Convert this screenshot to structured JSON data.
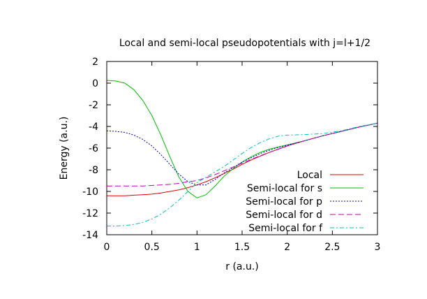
{
  "chart_data": {
    "type": "line",
    "title": "Local and semi-local pseudopotentials with j=l+1/2",
    "xlabel": "r (a.u.)",
    "ylabel": "Energy (a.u.)",
    "xlim": [
      0,
      3
    ],
    "ylim": [
      -14,
      2
    ],
    "xticks": [
      0,
      0.5,
      1,
      1.5,
      2,
      2.5,
      3
    ],
    "yticks": [
      2,
      0,
      -2,
      -4,
      -6,
      -8,
      -10,
      -12,
      -14
    ],
    "xtick_labels": [
      "0",
      "0.5",
      "1",
      "1.5",
      "2",
      "2.5",
      "3"
    ],
    "ytick_labels": [
      "2",
      "0",
      "-2",
      "-4",
      "-6",
      "-8",
      "-10",
      "-12",
      "-14"
    ],
    "grid": false,
    "legend_position": "bottom-right",
    "series": [
      {
        "name": "Local",
        "color": "#e00000",
        "dash": "solid",
        "x": [
          0,
          0.1,
          0.2,
          0.3,
          0.4,
          0.5,
          0.6,
          0.7,
          0.8,
          0.9,
          1.0,
          1.1,
          1.2,
          1.3,
          1.4,
          1.5,
          1.6,
          1.7,
          1.8,
          1.9,
          2.0,
          2.2,
          2.4,
          2.6,
          2.8,
          3.0
        ],
        "y": [
          -10.4,
          -10.4,
          -10.4,
          -10.35,
          -10.3,
          -10.25,
          -10.15,
          -10.0,
          -9.85,
          -9.65,
          -9.4,
          -9.1,
          -8.75,
          -8.35,
          -7.95,
          -7.5,
          -7.1,
          -6.75,
          -6.4,
          -6.1,
          -5.8,
          -5.3,
          -4.85,
          -4.45,
          -4.05,
          -3.7
        ]
      },
      {
        "name": "Semi-local for s",
        "color": "#00c000",
        "dash": "solid",
        "x": [
          0,
          0.1,
          0.2,
          0.3,
          0.4,
          0.5,
          0.6,
          0.7,
          0.8,
          0.9,
          1.0,
          1.1,
          1.2,
          1.3,
          1.4,
          1.5,
          1.6,
          1.7,
          1.8,
          1.9,
          2.0,
          2.2,
          2.4,
          2.6,
          2.8,
          3.0
        ],
        "y": [
          0.25,
          0.2,
          0.0,
          -0.6,
          -1.6,
          -3.0,
          -4.8,
          -6.8,
          -8.7,
          -10.0,
          -10.6,
          -10.3,
          -9.5,
          -8.6,
          -7.9,
          -7.3,
          -6.8,
          -6.4,
          -6.1,
          -5.9,
          -5.7,
          -5.3,
          -4.85,
          -4.45,
          -4.05,
          -3.7
        ]
      },
      {
        "name": "Semi-local for p",
        "color": "#0000c0",
        "dash": "dotted",
        "x": [
          0,
          0.1,
          0.2,
          0.3,
          0.4,
          0.5,
          0.6,
          0.7,
          0.8,
          0.9,
          1.0,
          1.1,
          1.2,
          1.3,
          1.4,
          1.5,
          1.6,
          1.7,
          1.8,
          1.9,
          2.0,
          2.2,
          2.4,
          2.6,
          2.8,
          3.0
        ],
        "y": [
          -4.4,
          -4.45,
          -4.55,
          -4.8,
          -5.2,
          -5.8,
          -6.6,
          -7.5,
          -8.4,
          -9.1,
          -9.4,
          -9.4,
          -8.9,
          -8.3,
          -7.8,
          -7.3,
          -6.9,
          -6.5,
          -6.2,
          -5.95,
          -5.75,
          -5.3,
          -4.85,
          -4.45,
          -4.05,
          -3.7
        ]
      },
      {
        "name": "Semi-local for d",
        "color": "#c000c0",
        "dash": "longdash",
        "x": [
          0,
          0.1,
          0.2,
          0.3,
          0.4,
          0.5,
          0.6,
          0.7,
          0.8,
          0.9,
          1.0,
          1.1,
          1.2,
          1.3,
          1.4,
          1.5,
          1.6,
          1.7,
          1.8,
          1.9,
          2.0,
          2.2,
          2.4,
          2.6,
          2.8,
          3.0
        ],
        "y": [
          -9.5,
          -9.5,
          -9.5,
          -9.5,
          -9.5,
          -9.45,
          -9.4,
          -9.35,
          -9.25,
          -9.1,
          -9.0,
          -8.75,
          -8.45,
          -8.1,
          -7.75,
          -7.4,
          -7.05,
          -6.7,
          -6.4,
          -6.1,
          -5.8,
          -5.3,
          -4.85,
          -4.45,
          -4.05,
          -3.7
        ]
      },
      {
        "name": "Semi-local for f",
        "color": "#00c0c0",
        "dash": "dashdot",
        "x": [
          0,
          0.1,
          0.2,
          0.3,
          0.4,
          0.5,
          0.6,
          0.7,
          0.8,
          0.9,
          1.0,
          1.1,
          1.2,
          1.3,
          1.4,
          1.5,
          1.6,
          1.7,
          1.8,
          1.9,
          2.0,
          2.2,
          2.4,
          2.6,
          2.8,
          3.0
        ],
        "y": [
          -13.2,
          -13.2,
          -13.15,
          -13.05,
          -12.85,
          -12.55,
          -12.1,
          -11.5,
          -10.8,
          -10.0,
          -9.2,
          -8.7,
          -8.2,
          -7.7,
          -7.1,
          -6.5,
          -5.95,
          -5.5,
          -5.15,
          -4.9,
          -4.8,
          -4.75,
          -4.65,
          -4.4,
          -4.0,
          -3.7
        ]
      }
    ]
  }
}
